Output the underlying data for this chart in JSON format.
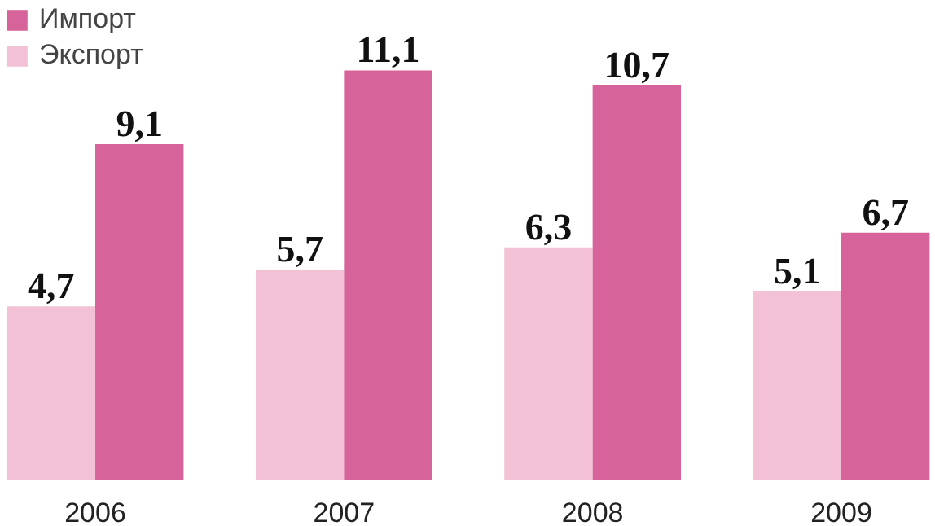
{
  "chart_data": {
    "type": "bar",
    "categories": [
      "2006",
      "2007",
      "2008",
      "2009"
    ],
    "legend": "top left",
    "series": [
      {
        "name": "Экспорт",
        "color": "#f2c1d5",
        "values": [
          4.7,
          5.7,
          6.3,
          5.1
        ],
        "value_labels": [
          "4,7",
          "5,7",
          "6,3",
          "5,1"
        ]
      },
      {
        "name": "Импорт",
        "color": "#d6649a",
        "values": [
          9.1,
          11.1,
          10.7,
          6.7
        ],
        "value_labels": [
          "9,1",
          "11,1",
          "10,7",
          "6,7"
        ]
      }
    ]
  }
}
